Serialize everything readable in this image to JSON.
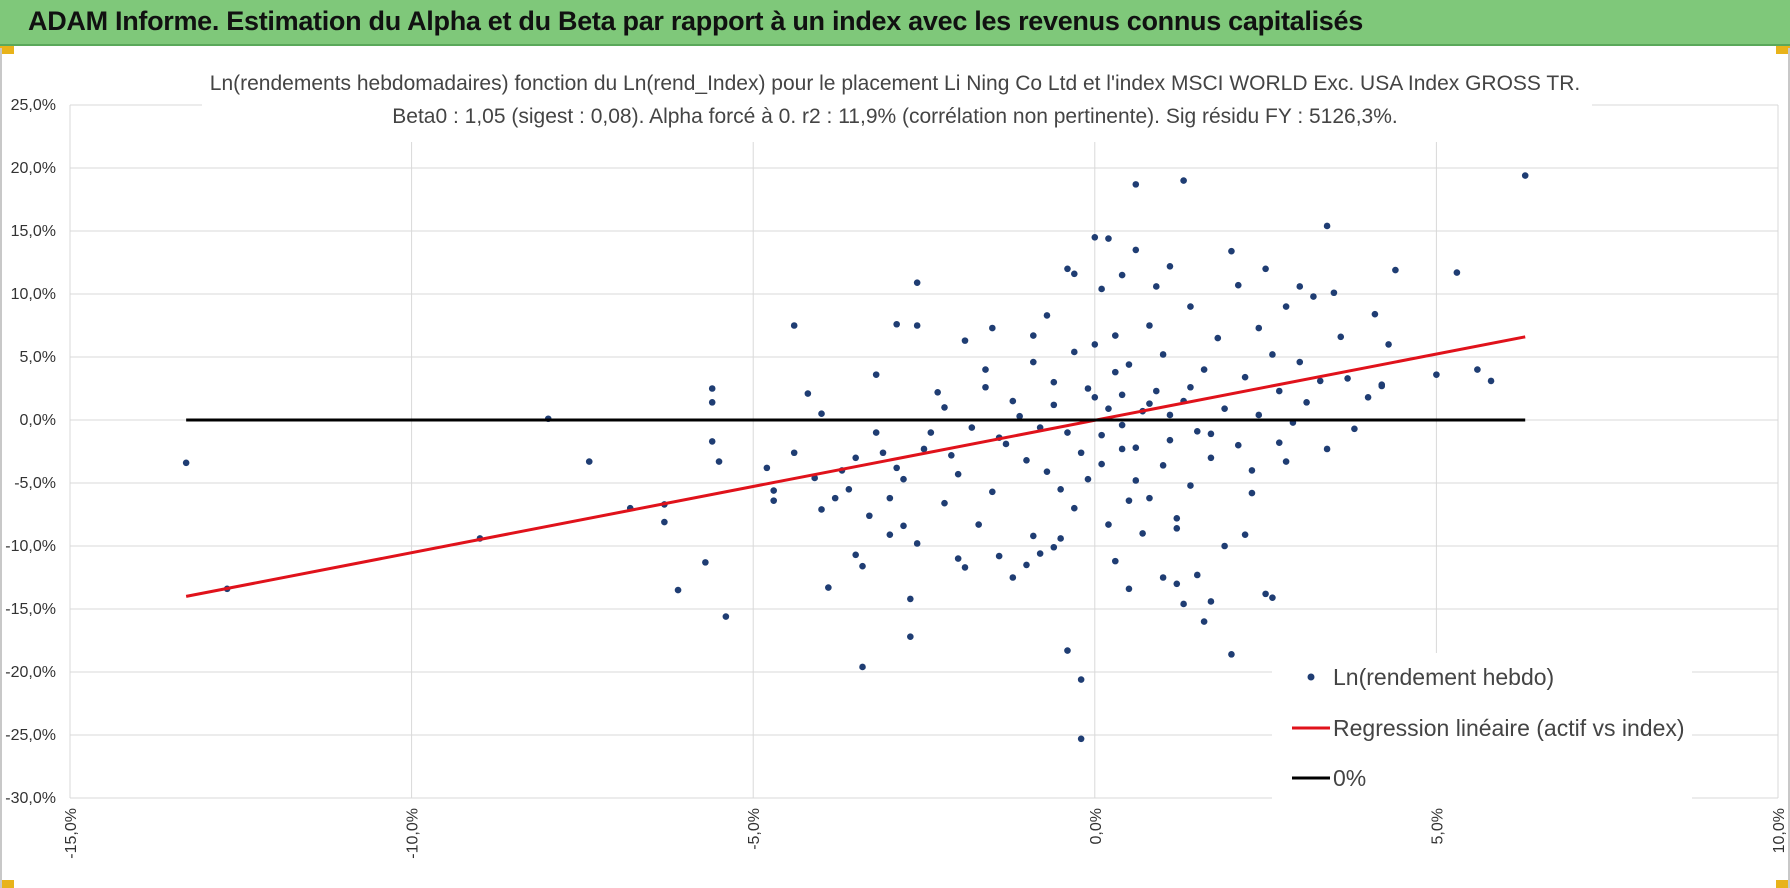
{
  "header": {
    "title": "ADAM Informe. Estimation du Alpha et du Beta par rapport à un index avec les revenus connus capitalisés"
  },
  "chart_data": {
    "type": "scatter",
    "title": "Ln(rendements hebdomadaires) fonction du Ln(rend_Index) pour le placement Li Ning Co Ltd et l'index MSCI WORLD Exc. USA Index GROSS TR.",
    "subtitle": "Beta0 : 1,05 (sigest : 0,08).  Alpha forcé à 0. r2 : 11,9% (corrélation non pertinente). Sig résidu FY : 5126,3%.",
    "xlim": [
      -15,
      10
    ],
    "ylim": [
      -30,
      25
    ],
    "x_ticks": [
      -15,
      -10,
      -5,
      0,
      5,
      10
    ],
    "y_ticks": [
      25,
      20,
      15,
      10,
      5,
      0,
      -5,
      -10,
      -15,
      -20,
      -25,
      -30
    ],
    "x_tick_labels": [
      "-15,0%",
      "-10,0%",
      "-5,0%",
      "0,0%",
      "5,0%",
      "10,0%"
    ],
    "y_tick_labels": [
      "25,0%",
      "20,0%",
      "15,0%",
      "10,0%",
      "5,0%",
      "0,0%",
      "-5,0%",
      "-10,0%",
      "-15,0%",
      "-20,0%",
      "-25,0%",
      "-30,0%"
    ],
    "grid": true,
    "legend_position": "bottom-right",
    "colors": {
      "points": "#1f3d73",
      "regression": "#e0121b",
      "zero": "#000000"
    },
    "series": [
      {
        "name": "Ln(rendement hebdo)",
        "kind": "scatter",
        "points": [
          [
            -13.3,
            -3.4
          ],
          [
            -12.7,
            -13.4
          ],
          [
            -9.0,
            -9.4
          ],
          [
            -8.0,
            0.1
          ],
          [
            -7.4,
            -3.3
          ],
          [
            -6.8,
            -7.0
          ],
          [
            -6.3,
            -6.7
          ],
          [
            -6.3,
            -8.1
          ],
          [
            -6.1,
            -13.5
          ],
          [
            -5.7,
            -11.3
          ],
          [
            -5.6,
            2.5
          ],
          [
            -5.6,
            1.4
          ],
          [
            -5.6,
            -1.7
          ],
          [
            -5.5,
            -3.3
          ],
          [
            -5.4,
            -15.6
          ],
          [
            -4.8,
            -3.8
          ],
          [
            -4.7,
            -5.6
          ],
          [
            -4.7,
            -6.4
          ],
          [
            -4.4,
            -2.6
          ],
          [
            -4.4,
            7.5
          ],
          [
            -4.2,
            2.1
          ],
          [
            -4.1,
            -4.6
          ],
          [
            -4.0,
            -7.1
          ],
          [
            -4.0,
            0.5
          ],
          [
            -3.9,
            -13.3
          ],
          [
            -3.8,
            -6.2
          ],
          [
            -3.7,
            -4.0
          ],
          [
            -3.6,
            -5.5
          ],
          [
            -3.5,
            -3.0
          ],
          [
            -3.5,
            -10.7
          ],
          [
            -3.4,
            -11.6
          ],
          [
            -3.4,
            -19.6
          ],
          [
            -3.3,
            -7.6
          ],
          [
            -3.2,
            -1.0
          ],
          [
            -3.2,
            3.6
          ],
          [
            -3.1,
            -2.6
          ],
          [
            -3.0,
            -6.2
          ],
          [
            -3.0,
            -9.1
          ],
          [
            -2.9,
            -3.8
          ],
          [
            -2.9,
            7.6
          ],
          [
            -2.8,
            -8.4
          ],
          [
            -2.8,
            -4.7
          ],
          [
            -2.7,
            -17.2
          ],
          [
            -2.7,
            -14.2
          ],
          [
            -2.6,
            -9.8
          ],
          [
            -2.6,
            10.9
          ],
          [
            -2.6,
            7.5
          ],
          [
            -2.5,
            -2.3
          ],
          [
            -2.4,
            -1.0
          ],
          [
            -2.3,
            2.2
          ],
          [
            -2.2,
            -6.6
          ],
          [
            -2.2,
            1.0
          ],
          [
            -2.0,
            -4.3
          ],
          [
            -2.0,
            -11.0
          ],
          [
            -1.9,
            -11.7
          ],
          [
            -1.9,
            6.3
          ],
          [
            -1.8,
            -0.6
          ],
          [
            -1.7,
            -8.3
          ],
          [
            -1.6,
            4.0
          ],
          [
            -1.5,
            -5.7
          ],
          [
            -1.5,
            7.3
          ],
          [
            -1.4,
            -10.8
          ],
          [
            -1.3,
            -1.9
          ],
          [
            -1.2,
            -12.5
          ],
          [
            -1.2,
            1.5
          ],
          [
            -1.0,
            -11.5
          ],
          [
            -1.0,
            -3.2
          ],
          [
            -0.9,
            6.7
          ],
          [
            -0.9,
            -9.2
          ],
          [
            -0.8,
            -10.6
          ],
          [
            -0.8,
            -0.6
          ],
          [
            -0.7,
            8.3
          ],
          [
            -0.6,
            -10.1
          ],
          [
            -0.6,
            3.0
          ],
          [
            -0.5,
            -5.5
          ],
          [
            -0.5,
            -9.4
          ],
          [
            -0.4,
            -18.3
          ],
          [
            -0.4,
            12.0
          ],
          [
            -0.3,
            5.4
          ],
          [
            -0.3,
            -7.0
          ],
          [
            -0.3,
            11.6
          ],
          [
            -0.2,
            -20.6
          ],
          [
            -0.2,
            -25.3
          ],
          [
            -0.1,
            2.5
          ],
          [
            -0.1,
            -4.7
          ],
          [
            0.0,
            6.0
          ],
          [
            0.0,
            14.5
          ],
          [
            0.0,
            1.8
          ],
          [
            0.1,
            -1.2
          ],
          [
            0.1,
            10.4
          ],
          [
            0.1,
            -3.5
          ],
          [
            0.2,
            -8.3
          ],
          [
            0.2,
            14.4
          ],
          [
            0.3,
            3.8
          ],
          [
            0.3,
            -11.2
          ],
          [
            0.3,
            6.7
          ],
          [
            0.4,
            -2.3
          ],
          [
            0.4,
            11.5
          ],
          [
            0.4,
            -0.4
          ],
          [
            0.5,
            -13.4
          ],
          [
            0.5,
            4.4
          ],
          [
            0.6,
            18.7
          ],
          [
            0.6,
            -4.8
          ],
          [
            0.6,
            13.5
          ],
          [
            0.7,
            0.7
          ],
          [
            0.7,
            -9.0
          ],
          [
            0.8,
            -6.2
          ],
          [
            0.8,
            7.5
          ],
          [
            0.9,
            2.3
          ],
          [
            0.9,
            10.6
          ],
          [
            1.0,
            -3.6
          ],
          [
            1.0,
            -12.5
          ],
          [
            1.0,
            5.2
          ],
          [
            1.1,
            -1.6
          ],
          [
            1.1,
            12.2
          ],
          [
            1.2,
            -13.0
          ],
          [
            1.2,
            -7.8
          ],
          [
            1.3,
            -14.6
          ],
          [
            1.3,
            19.0
          ],
          [
            1.3,
            1.5
          ],
          [
            1.4,
            -5.2
          ],
          [
            1.4,
            9.0
          ],
          [
            1.5,
            -0.9
          ],
          [
            1.5,
            -12.3
          ],
          [
            1.6,
            -16.0
          ],
          [
            1.6,
            4.0
          ],
          [
            1.7,
            -14.4
          ],
          [
            1.7,
            -3.0
          ],
          [
            1.8,
            6.5
          ],
          [
            1.9,
            -10.0
          ],
          [
            1.9,
            0.9
          ],
          [
            2.0,
            13.4
          ],
          [
            2.0,
            -18.6
          ],
          [
            2.1,
            10.7
          ],
          [
            2.1,
            -2.0
          ],
          [
            2.2,
            -9.1
          ],
          [
            2.2,
            3.4
          ],
          [
            2.3,
            -4.0
          ],
          [
            2.4,
            7.3
          ],
          [
            2.4,
            0.4
          ],
          [
            2.5,
            -13.8
          ],
          [
            2.5,
            12.0
          ],
          [
            2.6,
            -14.1
          ],
          [
            2.6,
            5.2
          ],
          [
            2.7,
            -1.8
          ],
          [
            2.8,
            9.0
          ],
          [
            2.8,
            -3.3
          ],
          [
            2.9,
            -0.2
          ],
          [
            3.0,
            4.6
          ],
          [
            3.0,
            10.6
          ],
          [
            3.1,
            1.4
          ],
          [
            3.2,
            9.8
          ],
          [
            3.3,
            3.1
          ],
          [
            3.4,
            -2.3
          ],
          [
            3.4,
            15.4
          ],
          [
            3.5,
            10.1
          ],
          [
            3.6,
            6.6
          ],
          [
            3.7,
            3.3
          ],
          [
            3.8,
            -0.7
          ],
          [
            4.0,
            1.8
          ],
          [
            4.1,
            8.4
          ],
          [
            4.2,
            2.8
          ],
          [
            4.3,
            6.0
          ],
          [
            4.4,
            11.9
          ],
          [
            4.2,
            2.7
          ],
          [
            5.0,
            3.6
          ],
          [
            5.3,
            11.7
          ],
          [
            5.6,
            4.0
          ],
          [
            5.8,
            3.1
          ],
          [
            6.3,
            19.4
          ],
          [
            -0.6,
            1.2
          ],
          [
            -0.4,
            -1.0
          ],
          [
            -0.2,
            -2.6
          ],
          [
            0.2,
            0.9
          ],
          [
            0.4,
            2.0
          ],
          [
            0.6,
            -2.2
          ],
          [
            0.8,
            1.3
          ],
          [
            1.1,
            0.4
          ],
          [
            1.4,
            2.6
          ],
          [
            1.7,
            -1.1
          ],
          [
            -1.1,
            0.3
          ],
          [
            -1.4,
            -1.4
          ],
          [
            -0.7,
            -4.1
          ],
          [
            0.5,
            -6.4
          ],
          [
            1.2,
            -8.6
          ],
          [
            -1.6,
            2.6
          ],
          [
            -2.1,
            -2.8
          ],
          [
            2.3,
            -5.8
          ],
          [
            2.7,
            2.3
          ],
          [
            -0.9,
            4.6
          ]
        ]
      },
      {
        "name": "Regression linéaire (actif vs index)",
        "kind": "line",
        "points": [
          [
            -13.3,
            -14.0
          ],
          [
            6.3,
            6.6
          ]
        ]
      },
      {
        "name": "0%",
        "kind": "line",
        "points": [
          [
            -13.3,
            0
          ],
          [
            6.3,
            0
          ]
        ]
      }
    ]
  }
}
